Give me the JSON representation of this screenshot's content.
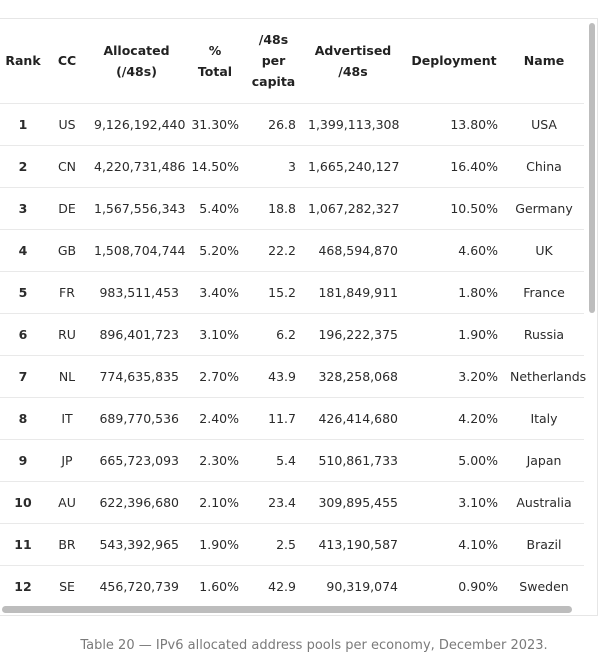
{
  "table": {
    "headers": [
      "Rank",
      "CC",
      "Allocated\n(/48s)",
      "%\nTotal",
      "/48s\nper\ncapita",
      "Advertised\n/48s",
      "Deployment",
      "Name"
    ],
    "rows": [
      [
        "1",
        "US",
        "9,126,192,440",
        "31.30%",
        "26.8",
        "1,399,113,308",
        "13.80%",
        "USA"
      ],
      [
        "2",
        "CN",
        "4,220,731,486",
        "14.50%",
        "3",
        "1,665,240,127",
        "16.40%",
        "China"
      ],
      [
        "3",
        "DE",
        "1,567,556,343",
        "5.40%",
        "18.8",
        "1,067,282,327",
        "10.50%",
        "Germany"
      ],
      [
        "4",
        "GB",
        "1,508,704,744",
        "5.20%",
        "22.2",
        "468,594,870",
        "4.60%",
        "UK"
      ],
      [
        "5",
        "FR",
        "983,511,453",
        "3.40%",
        "15.2",
        "181,849,911",
        "1.80%",
        "France"
      ],
      [
        "6",
        "RU",
        "896,401,723",
        "3.10%",
        "6.2",
        "196,222,375",
        "1.90%",
        "Russia"
      ],
      [
        "7",
        "NL",
        "774,635,835",
        "2.70%",
        "43.9",
        "328,258,068",
        "3.20%",
        "Netherlands"
      ],
      [
        "8",
        "IT",
        "689,770,536",
        "2.40%",
        "11.7",
        "426,414,680",
        "4.20%",
        "Italy"
      ],
      [
        "9",
        "JP",
        "665,723,093",
        "2.30%",
        "5.4",
        "510,861,733",
        "5.00%",
        "Japan"
      ],
      [
        "10",
        "AU",
        "622,396,680",
        "2.10%",
        "23.4",
        "309,895,455",
        "3.10%",
        "Australia"
      ],
      [
        "11",
        "BR",
        "543,392,965",
        "1.90%",
        "2.5",
        "413,190,587",
        "4.10%",
        "Brazil"
      ],
      [
        "12",
        "SE",
        "456,720,739",
        "1.60%",
        "42.9",
        "90,319,074",
        "0.90%",
        "Sweden"
      ]
    ]
  },
  "caption": "Table 20 — IPv6 allocated address pools per economy, December 2023.",
  "colors": {
    "scrollbar": "#bdbdbd",
    "border": "#e6e6e6",
    "caption": "#7a7a7a"
  }
}
